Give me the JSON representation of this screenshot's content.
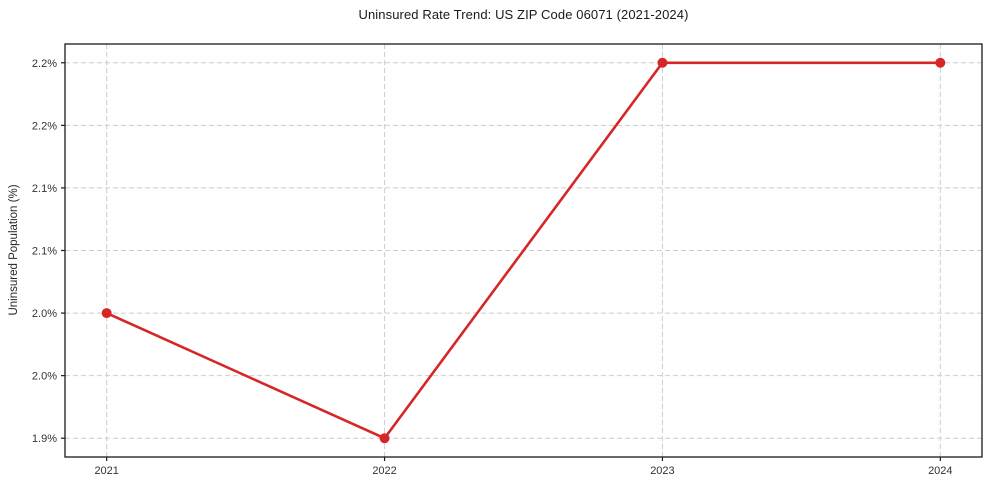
{
  "chart_data": {
    "type": "line",
    "title": "Uninsured Rate Trend: US ZIP Code 06071 (2021-2024)",
    "xlabel": "",
    "ylabel": "Uninsured Population (%)",
    "x": [
      2021,
      2022,
      2023,
      2024
    ],
    "values": [
      2.0,
      1.9,
      2.2,
      2.2
    ],
    "x_ticks": [
      {
        "value": 2021,
        "label": "2021"
      },
      {
        "value": 2022,
        "label": "2022"
      },
      {
        "value": 2023,
        "label": "2023"
      },
      {
        "value": 2024,
        "label": "2024"
      }
    ],
    "y_ticks": [
      {
        "value": 1.9,
        "label": "1.9%"
      },
      {
        "value": 1.95,
        "label": "2.0%"
      },
      {
        "value": 2.0,
        "label": "2.0%"
      },
      {
        "value": 2.05,
        "label": "2.1%"
      },
      {
        "value": 2.1,
        "label": "2.1%"
      },
      {
        "value": 2.15,
        "label": "2.2%"
      },
      {
        "value": 2.2,
        "label": "2.2%"
      }
    ],
    "xlim": [
      2020.85,
      2024.15
    ],
    "ylim": [
      1.885,
      2.215
    ],
    "grid": true,
    "grid_style": "dashed",
    "legend": false,
    "line_color": "#d62728",
    "marker": "circle",
    "marker_color": "#d62728",
    "grid_color": "#cdcdcd",
    "spine_color": "#1a1a1a",
    "background": "#ffffff"
  }
}
